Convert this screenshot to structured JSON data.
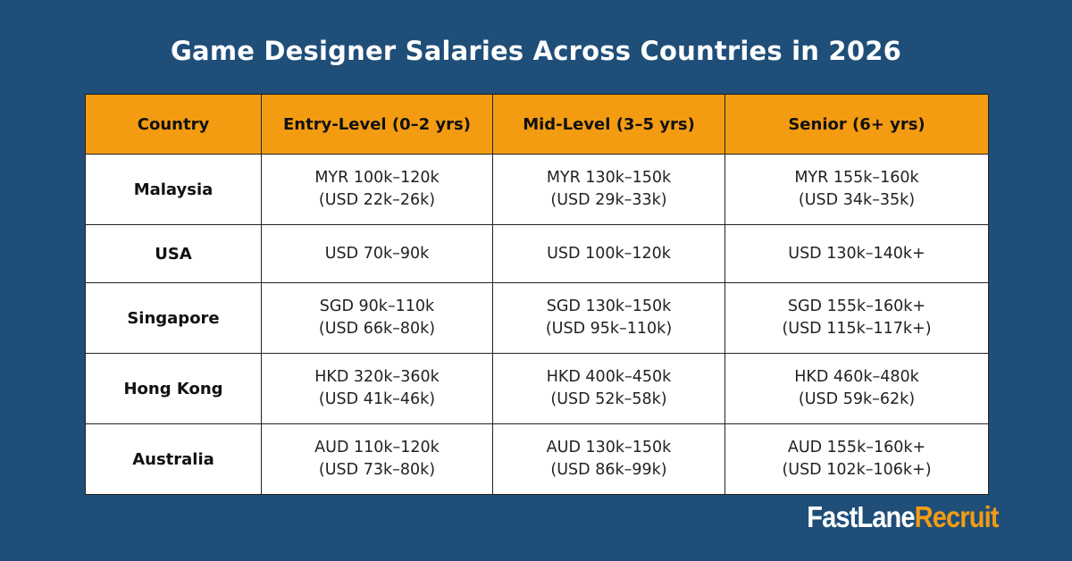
{
  "title": "Game Designer Salaries Across Countries in 2026",
  "table": {
    "headers": [
      "Country",
      "Entry-Level (0–2 yrs)",
      "Mid-Level (3–5 yrs)",
      "Senior (6+ yrs)"
    ],
    "rows": [
      {
        "country": "Malaysia",
        "entry": [
          "MYR 100k–120k",
          "(USD 22k–26k)"
        ],
        "mid": [
          "MYR 130k–150k",
          "(USD 29k–33k)"
        ],
        "senior": [
          "MYR 155k–160k",
          "(USD 34k–35k)"
        ]
      },
      {
        "country": "USA",
        "entry": [
          "USD 70k–90k",
          ""
        ],
        "mid": [
          "USD 100k–120k",
          ""
        ],
        "senior": [
          "USD 130k–140k+",
          ""
        ]
      },
      {
        "country": "Singapore",
        "entry": [
          "SGD 90k–110k",
          "(USD 66k–80k)"
        ],
        "mid": [
          "SGD 130k–150k",
          "(USD 95k–110k)"
        ],
        "senior": [
          "SGD 155k–160k+",
          "(USD 115k–117k+)"
        ]
      },
      {
        "country": "Hong Kong",
        "entry": [
          "HKD 320k–360k",
          "(USD 41k–46k)"
        ],
        "mid": [
          "HKD 400k–450k",
          "(USD 52k–58k)"
        ],
        "senior": [
          "HKD 460k–480k",
          "(USD 59k–62k)"
        ]
      },
      {
        "country": "Australia",
        "entry": [
          "AUD 110k–120k",
          "(USD 73k–80k)"
        ],
        "mid": [
          "AUD 130k–150k",
          "(USD 86k–99k)"
        ],
        "senior": [
          "AUD 155k–160k+",
          "(USD 102k–106k+)"
        ]
      }
    ]
  },
  "logo": {
    "part1": "FastLane",
    "part2": "Recruit"
  },
  "colors": {
    "background": "#1f4e79",
    "header": "#f39c12",
    "logo_accent": "#f39c12"
  }
}
